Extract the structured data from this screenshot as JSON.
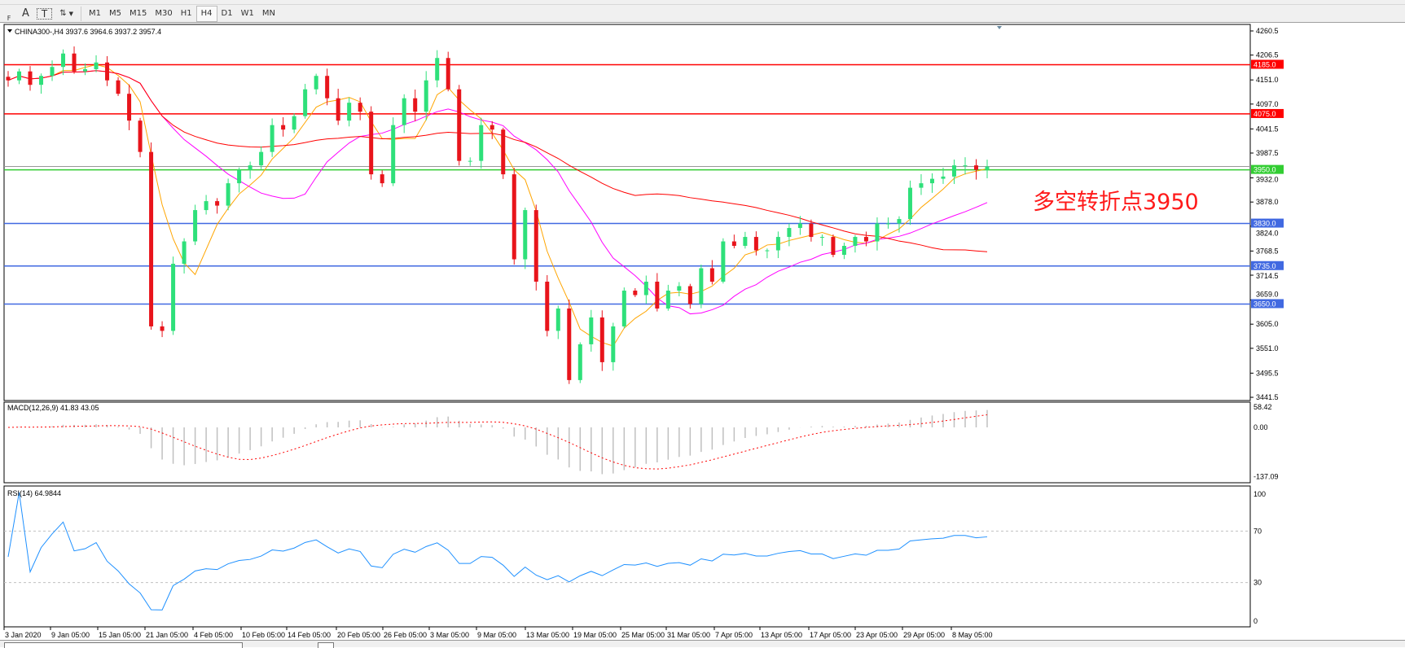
{
  "toolbar": {
    "tools": [
      {
        "icon": "grid-icon",
        "label": "F"
      },
      {
        "icon": "text-icon",
        "label": "A"
      },
      {
        "icon": "text-label-icon",
        "label": "T"
      },
      {
        "icon": "arrows-icon",
        "label": "⇅"
      }
    ],
    "timeframes": [
      "M1",
      "M5",
      "M15",
      "M30",
      "H1",
      "H4",
      "D1",
      "W1",
      "MN"
    ],
    "active_timeframe": "H4"
  },
  "chart": {
    "symbol_info": "CHINA300-,H4  3937.6 3964.6 3937.2 3957.4",
    "price_ticks": [
      "4260.5",
      "4206.5",
      "4151.0",
      "4097.0",
      "4041.5",
      "3987.5",
      "3932.0",
      "3878.0",
      "3824.0",
      "3768.5",
      "3714.5",
      "3659.0",
      "3605.0",
      "3551.0",
      "3495.5",
      "3441.5"
    ],
    "current_price": "3957.4",
    "levels": [
      {
        "value": 4185.0,
        "label": "4185.0",
        "color": "#ff0000"
      },
      {
        "value": 4075.0,
        "label": "4075.0",
        "color": "#ff0000"
      },
      {
        "value": 3950.0,
        "label": "3950.0",
        "color": "#32cd32"
      },
      {
        "value": 3830.0,
        "label": "3830.0",
        "color": "#4169e1"
      },
      {
        "value": 3735.0,
        "label": "3735.0",
        "color": "#4169e1"
      },
      {
        "value": 3650.0,
        "label": "3650.0",
        "color": "#4169e1"
      }
    ],
    "annotation": "多空转折点3950",
    "annotation_color": "#ff1a1a",
    "bull_color": "#2ee07a",
    "bear_color": "#e8141b",
    "ma_colors": [
      "#ffa500",
      "#ff00ff",
      "#ff0000"
    ],
    "time_labels": [
      "3 Jan 2020",
      "9 Jan 05:00",
      "15 Jan 05:00",
      "21 Jan 05:00",
      "4 Feb 05:00",
      "10 Feb 05:00",
      "14 Feb 05:00",
      "20 Feb 05:00",
      "26 Feb 05:00",
      "3 Mar 05:00",
      "9 Mar 05:00",
      "13 Mar 05:00",
      "19 Mar 05:00",
      "25 Mar 05:00",
      "31 Mar 05:00",
      "7 Apr 05:00",
      "13 Apr 05:00",
      "17 Apr 05:00",
      "23 Apr 05:00",
      "29 Apr 05:00",
      "8 May 05:00"
    ]
  },
  "macd": {
    "label": "MACD(12,26,9) 41.83 43.05",
    "ticks": [
      "58.42",
      "0.00",
      "-137.09"
    ]
  },
  "rsi": {
    "label": "RSI(14) 64.9844",
    "ticks": [
      "100",
      "70",
      "30",
      "0"
    ]
  },
  "chart_data": {
    "type": "candlestick",
    "symbol": "CHINA300-",
    "timeframe": "H4",
    "ylim": [
      3441.5,
      4260.5
    ],
    "closes": [
      4150,
      4170,
      4140,
      4160,
      4180,
      4210,
      4170,
      4175,
      4190,
      4150,
      4120,
      4060,
      3990,
      3600,
      3590,
      3740,
      3790,
      3860,
      3880,
      3870,
      3920,
      3950,
      3960,
      3990,
      4050,
      4040,
      4070,
      4130,
      4160,
      4110,
      4060,
      4100,
      4080,
      3940,
      3920,
      4050,
      4110,
      4080,
      4150,
      4200,
      4130,
      3970,
      3970,
      4050,
      4040,
      3940,
      3750,
      3860,
      3700,
      3590,
      3640,
      3480,
      3560,
      3620,
      3520,
      3600,
      3680,
      3670,
      3700,
      3640,
      3680,
      3690,
      3650,
      3730,
      3700,
      3790,
      3780,
      3800,
      3770,
      3770,
      3800,
      3820,
      3830,
      3800,
      3800,
      3760,
      3780,
      3800,
      3790,
      3830,
      3830,
      3840,
      3910,
      3920,
      3930,
      3935,
      3960,
      3960,
      3950,
      3957.4
    ]
  }
}
